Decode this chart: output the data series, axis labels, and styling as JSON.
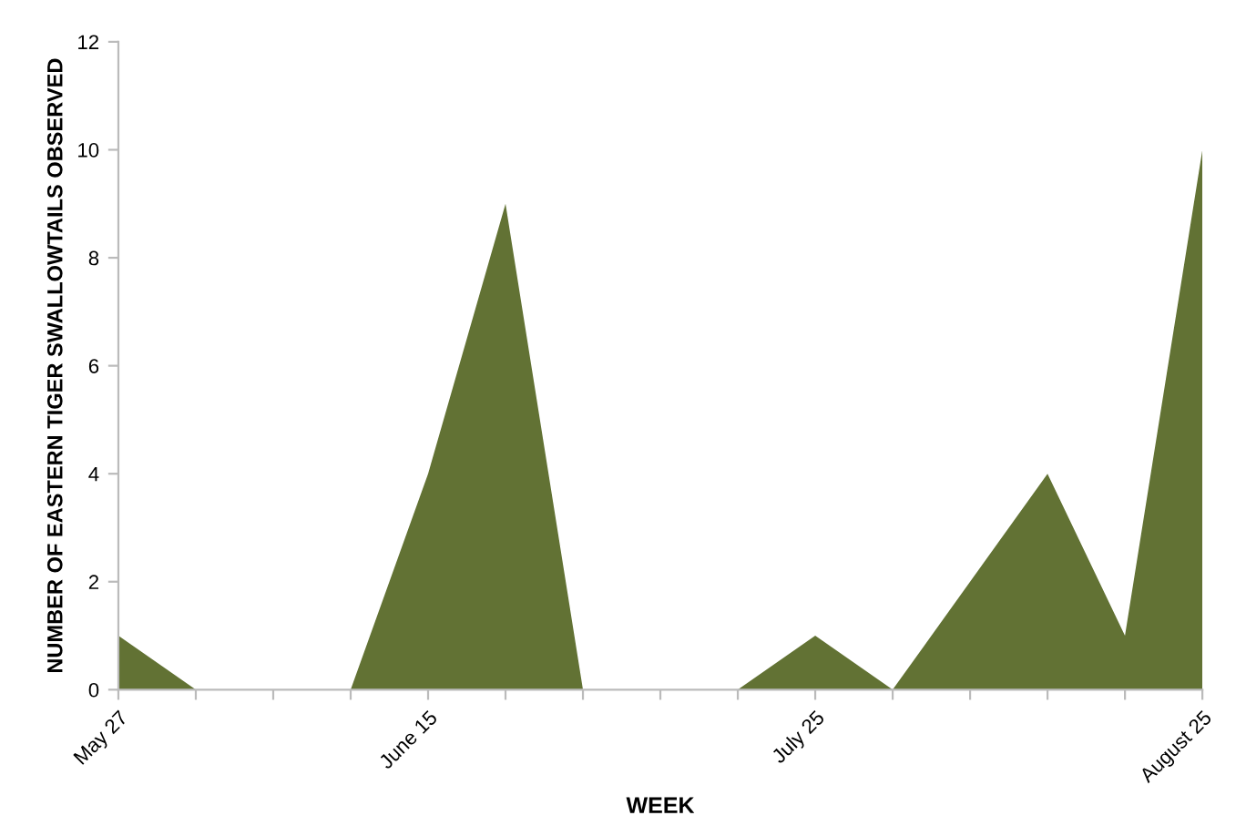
{
  "chart_data": {
    "type": "area",
    "xlabel": "WEEK",
    "ylabel": "NUMBER OF EASTERN TIGER SWALLOWTAILS OBSERVED",
    "categories": [
      "May 27",
      null,
      null,
      null,
      "June 15",
      null,
      null,
      null,
      null,
      "July 25",
      null,
      null,
      null,
      null,
      "August 25"
    ],
    "series": [
      {
        "color": "#627234",
        "values": [
          1,
          0,
          0,
          0,
          4,
          9,
          0,
          0,
          0,
          1,
          0,
          2,
          4,
          1,
          10
        ]
      }
    ],
    "ylim": [
      0,
      12
    ],
    "yticks": [
      0,
      2,
      4,
      6,
      8,
      10,
      12
    ],
    "grid": false,
    "legend": false
  }
}
